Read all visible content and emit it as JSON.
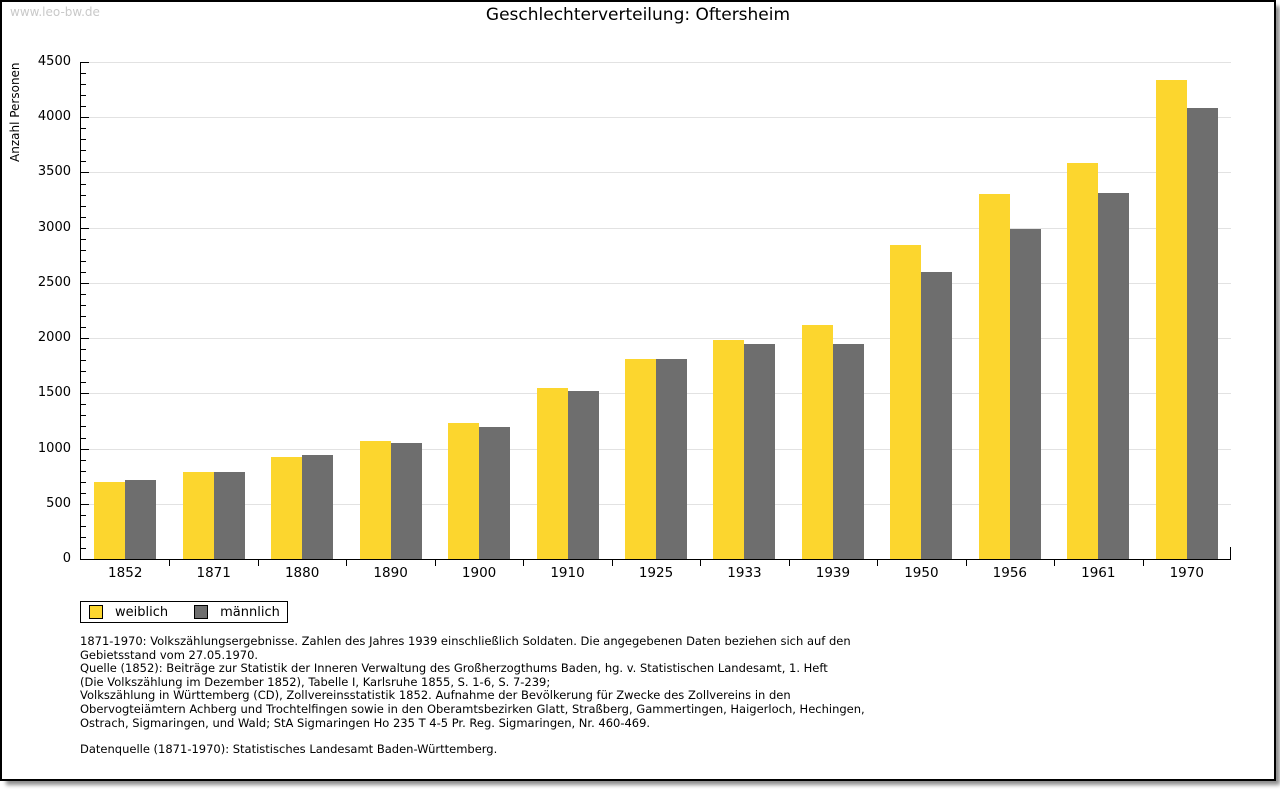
{
  "watermark": "www.leo-bw.de",
  "chart_data": {
    "type": "bar",
    "title": "Geschlechterverteilung: Oftersheim",
    "xlabel": "",
    "ylabel": "Anzahl Personen",
    "categories": [
      "1852",
      "1871",
      "1880",
      "1890",
      "1900",
      "1910",
      "1925",
      "1933",
      "1939",
      "1950",
      "1956",
      "1961",
      "1970"
    ],
    "series": [
      {
        "name": "weiblich",
        "color": "#fcd62e",
        "values": [
          700,
          785,
          925,
          1070,
          1230,
          1550,
          1815,
          1980,
          2120,
          2845,
          3305,
          3590,
          4340
        ]
      },
      {
        "name": "männlich",
        "color": "#6e6e6e",
        "values": [
          715,
          790,
          940,
          1050,
          1195,
          1520,
          1810,
          1945,
          1945,
          2600,
          2990,
          3310,
          4080
        ]
      }
    ],
    "ylim": [
      0,
      4500
    ],
    "ytick_step": 500,
    "y_minor_step": 100,
    "grid": true,
    "legend_position": "bottom-left"
  },
  "colors": {
    "female_bar": "#fcd62e",
    "male_bar": "#6e6e6e",
    "gridline": "#e2e2e2",
    "watermark": "#c9c9c9",
    "axis": "#000000"
  },
  "footnotes": {
    "lines": [
      "1871-1970: Volkszählungsergebnisse. Zahlen des Jahres 1939 einschließlich Soldaten. Die angegebenen Daten beziehen sich auf den",
      "Gebietsstand vom 27.05.1970.",
      "Quelle (1852): Beiträge zur Statistik der Inneren Verwaltung des Großherzogthums Baden, hg. v. Statistischen Landesamt, 1. Heft",
      "(Die Volkszählung im Dezember 1852), Tabelle I, Karlsruhe 1855, S. 1-6, S. 7-239;",
      "Volkszählung in Württemberg (CD), Zollvereinsstatistik 1852. Aufnahme der Bevölkerung für Zwecke des Zollvereins in den",
      "Obervogteiämtern Achberg und Trochtelfingen sowie in den Oberamtsbezirken Glatt, Straßberg, Gammertingen, Haigerloch, Hechingen,",
      "Ostrach, Sigmaringen, und Wald; StA Sigmaringen Ho 235 T 4-5 Pr. Reg. Sigmaringen, Nr. 460-469."
    ],
    "datasource": "Datenquelle (1871-1970): Statistisches Landesamt Baden-Württemberg."
  }
}
